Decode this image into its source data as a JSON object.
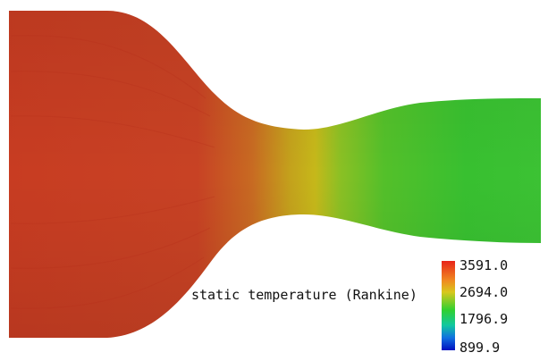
{
  "diagram": {
    "variable_label": "static temperature (Rankine)",
    "colorbar": {
      "ticks": [
        "3591.0",
        "2694.0",
        "1796.9",
        "899.9"
      ],
      "colors": [
        "#e8241a",
        "#f0a020",
        "#c8d020",
        "#20c830",
        "#10c8a0",
        "#1060e0",
        "#0010c0"
      ]
    },
    "field_colors": {
      "inlet": "#cc3a22",
      "throat": "#c8b418",
      "exit": "#3cc02e"
    }
  }
}
